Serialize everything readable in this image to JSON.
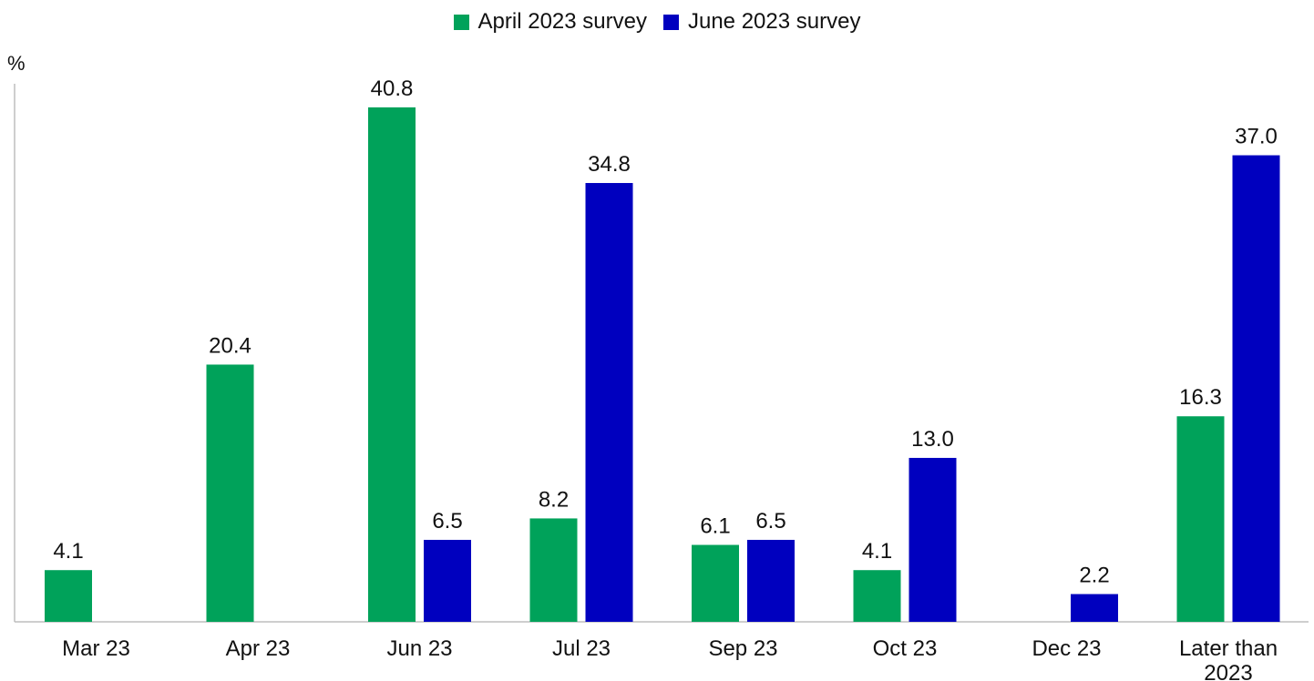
{
  "chart_data": {
    "type": "bar",
    "title": "",
    "xlabel": "",
    "ylabel": "%",
    "ylim": [
      0,
      42
    ],
    "grid": false,
    "legend_position": "top-center",
    "categories": [
      "Mar 23",
      "Apr 23",
      "Jun 23",
      "Jul 23",
      "Sep 23",
      "Oct 23",
      "Dec 23",
      "Later than 2023"
    ],
    "series": [
      {
        "name": "April 2023 survey",
        "color": "#00a25a",
        "values": [
          4.1,
          20.4,
          40.8,
          8.2,
          6.1,
          4.1,
          null,
          16.3
        ],
        "labels": [
          "4.1",
          "20.4",
          "40.8",
          "8.2",
          "6.1",
          "4.1",
          null,
          "16.3"
        ]
      },
      {
        "name": "June 2023 survey",
        "color": "#0000bf",
        "values": [
          null,
          null,
          6.5,
          34.8,
          6.5,
          13.0,
          2.2,
          37.0
        ],
        "labels": [
          null,
          null,
          "6.5",
          "34.8",
          "6.5",
          "13.0",
          "2.2",
          "37.0"
        ]
      }
    ]
  }
}
